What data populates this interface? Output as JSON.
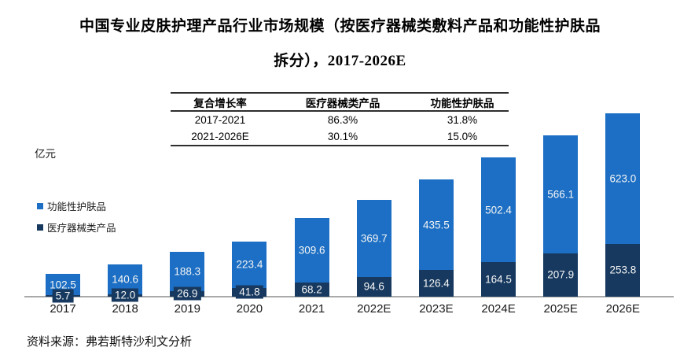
{
  "chart_data": {
    "type": "bar",
    "stacked": true,
    "title_line1": "中国专业皮肤护理产品行业市场规模（按医疗器械类敷料产品和功能性护肤品",
    "title_line2": "拆分），2017-2026E",
    "unit_label": "亿元",
    "categories": [
      "2017",
      "2018",
      "2019",
      "2020",
      "2021",
      "2022E",
      "2023E",
      "2024E",
      "2025E",
      "2026E"
    ],
    "series": [
      {
        "name": "功能性护肤品",
        "color": "#1c6fc4",
        "values": [
          102.5,
          140.6,
          188.3,
          223.4,
          309.6,
          369.7,
          435.5,
          502.4,
          566.1,
          623.0
        ]
      },
      {
        "name": "医疗器械类产品",
        "color": "#17395f",
        "values": [
          5.7,
          12.0,
          26.9,
          41.8,
          68.2,
          94.6,
          126.4,
          164.5,
          207.9,
          253.8
        ]
      }
    ],
    "stack_order_bottom_to_top": [
      "医疗器械类产品",
      "功能性护肤品"
    ],
    "value_labels": true,
    "legend_position": "middle-left",
    "grid": false,
    "ylim": [
      0,
      900
    ],
    "cagr_table": {
      "headers": [
        "复合增长率",
        "医疗器械类产品",
        "功能性护肤品"
      ],
      "rows": [
        [
          "2017-2021",
          "86.3%",
          "31.8%"
        ],
        [
          "2021-2026E",
          "30.1%",
          "15.0%"
        ]
      ]
    }
  },
  "source_note": "资料来源：弗若斯特沙利文分析",
  "colors": {
    "axis": "#a9a9a9",
    "bar_label_text": "#f5f5f5",
    "table_border": "#2e2e2e"
  }
}
